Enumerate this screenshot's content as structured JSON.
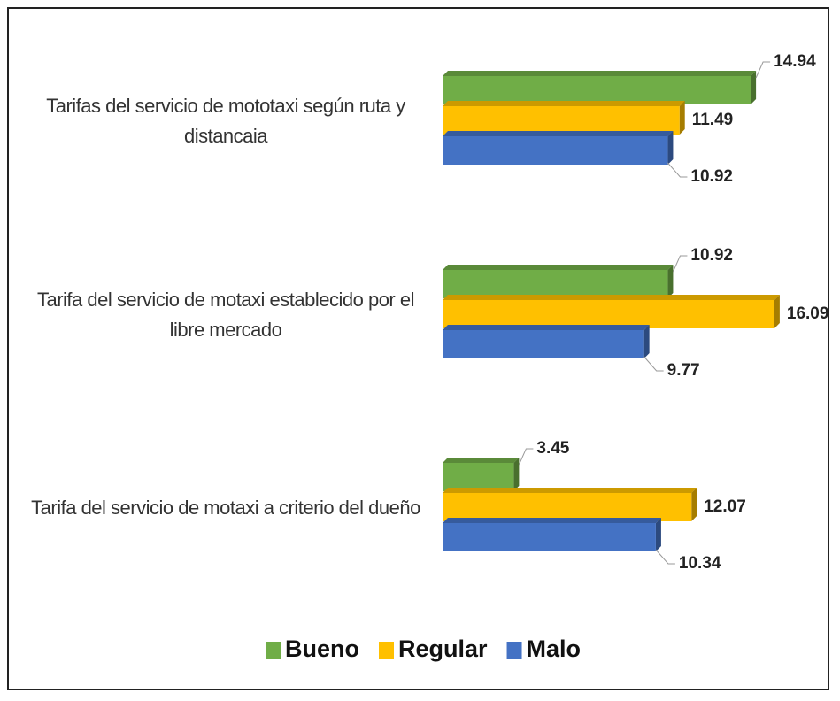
{
  "chart_data": {
    "type": "bar",
    "orientation": "horizontal",
    "categories": [
      "Tarifas del servicio de mototaxi según ruta y distancaia",
      "Tarifa del servicio de motaxi  establecido por el libre mercado",
      "Tarifa del servicio de motaxi a criterio del dueño"
    ],
    "series": [
      {
        "name": "Bueno",
        "color": "#70ad47",
        "values": [
          14.94,
          10.92,
          3.45
        ]
      },
      {
        "name": "Regular",
        "color": "#ffc000",
        "values": [
          11.49,
          16.09,
          12.07
        ]
      },
      {
        "name": "Malo",
        "color": "#4472c4",
        "values": [
          10.92,
          9.77,
          10.34
        ]
      }
    ],
    "legend": "bottom"
  }
}
